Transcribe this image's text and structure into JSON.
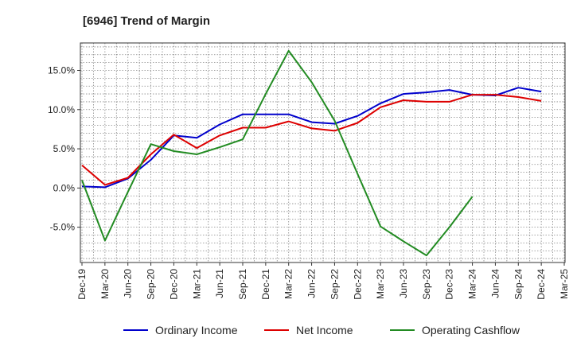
{
  "chart_data": {
    "type": "line",
    "title": "[6946]  Trend of Margin",
    "xlabel": "",
    "ylabel": "",
    "categories": [
      "Dec-19",
      "Mar-20",
      "Jun-20",
      "Sep-20",
      "Dec-20",
      "Mar-21",
      "Jun-21",
      "Sep-21",
      "Dec-21",
      "Mar-22",
      "Jun-22",
      "Sep-22",
      "Dec-22",
      "Mar-23",
      "Jun-23",
      "Sep-23",
      "Dec-23",
      "Mar-24",
      "Jun-24",
      "Sep-24",
      "Dec-24",
      "Mar-25"
    ],
    "y_ticks": [
      -5.0,
      0.0,
      5.0,
      10.0,
      15.0
    ],
    "y_tick_labels": [
      "-5.0%",
      "0.0%",
      "5.0%",
      "10.0%",
      "15.0%"
    ],
    "ylim": [
      -9.5,
      18.5
    ],
    "grid": true,
    "legend_position": "bottom",
    "series": [
      {
        "name": "Ordinary Income",
        "color": "#0000cc",
        "values": [
          0.2,
          0.1,
          1.2,
          3.6,
          6.7,
          6.4,
          8.1,
          9.4,
          9.4,
          9.4,
          8.4,
          8.2,
          9.2,
          10.8,
          12.0,
          12.2,
          12.5,
          11.9,
          11.8,
          12.8,
          12.3,
          null
        ]
      },
      {
        "name": "Net Income",
        "color": "#dd0000",
        "values": [
          2.9,
          0.4,
          1.3,
          4.3,
          6.8,
          5.1,
          6.7,
          7.7,
          7.7,
          8.5,
          7.6,
          7.3,
          8.3,
          10.3,
          11.2,
          11.0,
          11.0,
          11.9,
          11.9,
          11.6,
          11.1,
          null
        ]
      },
      {
        "name": "Operating Cashflow",
        "color": "#228b22",
        "values": [
          1.0,
          -6.7,
          -0.5,
          5.6,
          4.7,
          4.3,
          5.2,
          6.2,
          12.0,
          17.5,
          13.5,
          8.6,
          1.8,
          -4.9,
          -6.8,
          -8.6,
          -5.0,
          -1.1,
          null,
          null,
          null,
          null
        ]
      }
    ]
  }
}
